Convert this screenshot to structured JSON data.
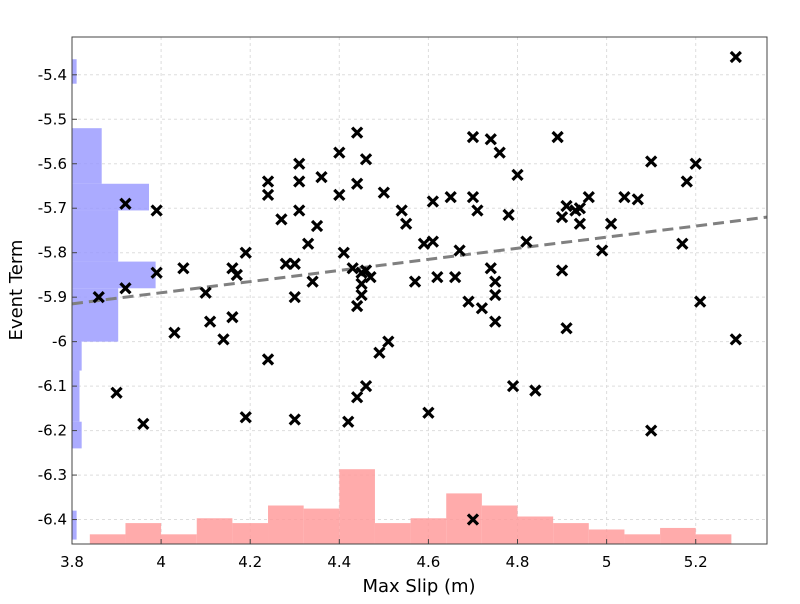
{
  "chart_data": {
    "type": "scatter",
    "xlabel": "Max Slip (m)",
    "ylabel": "Event Term",
    "xlim": [
      3.8,
      5.36
    ],
    "ylim": [
      -6.455,
      -5.315
    ],
    "x_ticks": [
      "3.8",
      "4",
      "4.2",
      "4.4",
      "4.6",
      "4.8",
      "5",
      "5.2"
    ],
    "y_ticks": [
      "-5.4",
      "-5.5",
      "-5.6",
      "-5.7",
      "-5.8",
      "-5.9",
      "-6",
      "-6.1",
      "-6.2",
      "-6.3",
      "-6.4"
    ],
    "grid": true,
    "marker": "x",
    "colors": {
      "points": "#000000",
      "trend": "#808080",
      "x_hist": "#ff9999",
      "y_hist": "#9999ff"
    },
    "points": [
      [
        3.86,
        -5.9
      ],
      [
        3.9,
        -6.115
      ],
      [
        3.92,
        -5.88
      ],
      [
        3.92,
        -5.69
      ],
      [
        3.96,
        -6.185
      ],
      [
        3.99,
        -5.705
      ],
      [
        3.99,
        -5.845
      ],
      [
        4.03,
        -5.98
      ],
      [
        4.05,
        -5.835
      ],
      [
        4.1,
        -5.89
      ],
      [
        4.11,
        -5.955
      ],
      [
        4.14,
        -5.995
      ],
      [
        4.16,
        -5.945
      ],
      [
        4.16,
        -5.835
      ],
      [
        4.17,
        -5.85
      ],
      [
        4.19,
        -5.8
      ],
      [
        4.19,
        -6.17
      ],
      [
        4.24,
        -5.64
      ],
      [
        4.24,
        -5.67
      ],
      [
        4.24,
        -6.04
      ],
      [
        4.27,
        -5.725
      ],
      [
        4.28,
        -5.825
      ],
      [
        4.3,
        -5.825
      ],
      [
        4.3,
        -5.9
      ],
      [
        4.3,
        -6.175
      ],
      [
        4.31,
        -5.6
      ],
      [
        4.31,
        -5.64
      ],
      [
        4.31,
        -5.705
      ],
      [
        4.33,
        -5.78
      ],
      [
        4.34,
        -5.865
      ],
      [
        4.35,
        -5.74
      ],
      [
        4.36,
        -5.63
      ],
      [
        4.4,
        -5.575
      ],
      [
        4.4,
        -5.67
      ],
      [
        4.41,
        -5.8
      ],
      [
        4.42,
        -6.18
      ],
      [
        4.43,
        -5.835
      ],
      [
        4.44,
        -5.53
      ],
      [
        4.44,
        -5.645
      ],
      [
        4.44,
        -5.92
      ],
      [
        4.44,
        -6.125
      ],
      [
        4.45,
        -5.845
      ],
      [
        4.45,
        -5.87
      ],
      [
        4.45,
        -5.895
      ],
      [
        4.46,
        -5.59
      ],
      [
        4.46,
        -6.1
      ],
      [
        4.46,
        -5.84
      ],
      [
        4.47,
        -5.855
      ],
      [
        4.49,
        -6.025
      ],
      [
        4.5,
        -5.665
      ],
      [
        4.51,
        -6.0
      ],
      [
        4.54,
        -5.705
      ],
      [
        4.55,
        -5.735
      ],
      [
        4.57,
        -5.865
      ],
      [
        4.59,
        -5.78
      ],
      [
        4.6,
        -6.16
      ],
      [
        4.61,
        -5.685
      ],
      [
        4.61,
        -5.775
      ],
      [
        4.62,
        -5.855
      ],
      [
        4.65,
        -5.675
      ],
      [
        4.66,
        -5.855
      ],
      [
        4.67,
        -5.795
      ],
      [
        4.69,
        -5.91
      ],
      [
        4.7,
        -5.54
      ],
      [
        4.7,
        -5.675
      ],
      [
        4.7,
        -6.4
      ],
      [
        4.71,
        -5.705
      ],
      [
        4.72,
        -5.925
      ],
      [
        4.74,
        -5.545
      ],
      [
        4.74,
        -5.835
      ],
      [
        4.75,
        -5.865
      ],
      [
        4.75,
        -5.895
      ],
      [
        4.75,
        -5.955
      ],
      [
        4.76,
        -5.575
      ],
      [
        4.78,
        -5.715
      ],
      [
        4.79,
        -6.1
      ],
      [
        4.8,
        -5.625
      ],
      [
        4.82,
        -5.775
      ],
      [
        4.84,
        -6.11
      ],
      [
        4.89,
        -5.54
      ],
      [
        4.9,
        -5.84
      ],
      [
        4.9,
        -5.72
      ],
      [
        4.91,
        -5.695
      ],
      [
        4.91,
        -5.97
      ],
      [
        4.93,
        -5.705
      ],
      [
        4.94,
        -5.7
      ],
      [
        4.94,
        -5.735
      ],
      [
        4.96,
        -5.675
      ],
      [
        4.99,
        -5.795
      ],
      [
        5.01,
        -5.735
      ],
      [
        5.04,
        -5.675
      ],
      [
        5.07,
        -5.68
      ],
      [
        5.1,
        -5.595
      ],
      [
        5.1,
        -6.2
      ],
      [
        5.17,
        -5.78
      ],
      [
        5.18,
        -5.64
      ],
      [
        5.2,
        -5.6
      ],
      [
        5.21,
        -5.91
      ],
      [
        5.29,
        -5.36
      ],
      [
        5.29,
        -5.995
      ]
    ],
    "trend": {
      "x": [
        3.8,
        5.36
      ],
      "y": [
        -5.915,
        -5.72
      ]
    },
    "x_histogram": [
      {
        "x0": 3.84,
        "x1": 3.92,
        "value": 0.44
      },
      {
        "x0": 3.92,
        "x1": 4.0,
        "value": 0.95
      },
      {
        "x0": 4.0,
        "x1": 4.08,
        "value": 0.44
      },
      {
        "x0": 4.08,
        "x1": 4.16,
        "value": 1.17
      },
      {
        "x0": 4.16,
        "x1": 4.24,
        "value": 0.95
      },
      {
        "x0": 4.24,
        "x1": 4.32,
        "value": 1.75
      },
      {
        "x0": 4.32,
        "x1": 4.4,
        "value": 1.61
      },
      {
        "x0": 4.4,
        "x1": 4.48,
        "value": 3.4
      },
      {
        "x0": 4.48,
        "x1": 4.56,
        "value": 0.95
      },
      {
        "x0": 4.56,
        "x1": 4.64,
        "value": 1.17
      },
      {
        "x0": 4.64,
        "x1": 4.72,
        "value": 2.3
      },
      {
        "x0": 4.72,
        "x1": 4.8,
        "value": 1.75
      },
      {
        "x0": 4.8,
        "x1": 4.88,
        "value": 1.25
      },
      {
        "x0": 4.88,
        "x1": 4.96,
        "value": 0.95
      },
      {
        "x0": 4.96,
        "x1": 5.04,
        "value": 0.66
      },
      {
        "x0": 5.04,
        "x1": 5.12,
        "value": 0.44
      },
      {
        "x0": 5.12,
        "x1": 5.2,
        "value": 0.73
      },
      {
        "x0": 5.2,
        "x1": 5.28,
        "value": 0.44
      }
    ],
    "y_histogram": [
      {
        "y0": -5.42,
        "y1": -5.365,
        "value": 0.21
      },
      {
        "y0": -5.645,
        "y1": -5.52,
        "value": 1.35
      },
      {
        "y0": -5.705,
        "y1": -5.645,
        "value": 3.5
      },
      {
        "y0": -5.82,
        "y1": -5.705,
        "value": 2.1
      },
      {
        "y0": -5.88,
        "y1": -5.82,
        "value": 3.8
      },
      {
        "y0": -6.0,
        "y1": -5.88,
        "value": 2.1
      },
      {
        "y0": -6.065,
        "y1": -6.0,
        "value": 0.44
      },
      {
        "y0": -6.18,
        "y1": -6.065,
        "value": 0.34
      },
      {
        "y0": -6.24,
        "y1": -6.18,
        "value": 0.44
      },
      {
        "y0": -6.445,
        "y1": -6.38,
        "value": 0.21
      }
    ]
  }
}
